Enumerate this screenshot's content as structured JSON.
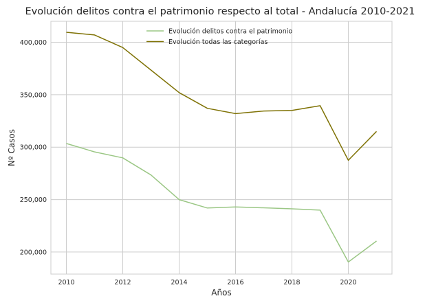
{
  "chart_data": {
    "type": "line",
    "title": "Evolución delitos contra el patrimonio respecto al total - Andalucía 2010-2021",
    "xlabel": "Años",
    "ylabel": "Nº Casos",
    "x": [
      2010,
      2011,
      2012,
      2013,
      2014,
      2015,
      2016,
      2017,
      2018,
      2019,
      2020,
      2021
    ],
    "xlim": [
      2009.45,
      2021.55
    ],
    "ylim": [
      179000,
      420000
    ],
    "xticks": [
      2010,
      2012,
      2014,
      2016,
      2018,
      2020
    ],
    "yticks": [
      200000,
      250000,
      300000,
      350000,
      400000
    ],
    "ytick_labels": [
      "200,000",
      "250,000",
      "300,000",
      "350,000",
      "400,000"
    ],
    "grid": true,
    "legend_position": "top-center",
    "series": [
      {
        "name": "Evolución delitos contra el patrimonio",
        "color": "#9bc785",
        "values": [
          303500,
          295500,
          289800,
          273500,
          250000,
          242000,
          243000,
          242200,
          241200,
          240000,
          190500,
          210500
        ]
      },
      {
        "name": "Evolución todas las categorías",
        "color": "#7f7205",
        "values": [
          409500,
          407000,
          395000,
          373500,
          352000,
          337000,
          332000,
          334500,
          335000,
          339500,
          287500,
          315000
        ]
      }
    ]
  }
}
